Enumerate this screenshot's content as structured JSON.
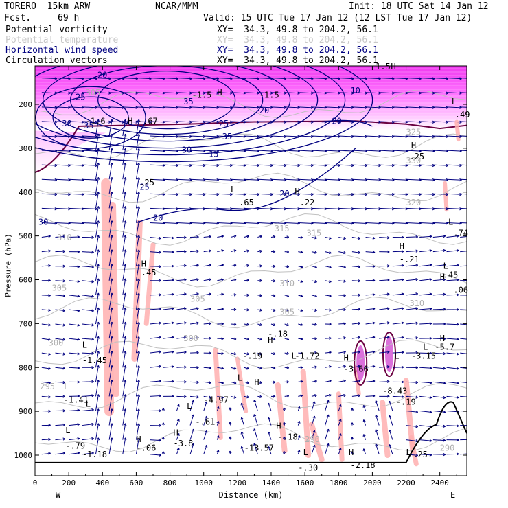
{
  "header": {
    "model": "TORERO  15km ARW",
    "org": "NCAR/MMM",
    "init": "Init: 18 UTC Sat 14 Jan 12",
    "fcst_label": "Fcst.",
    "fcst_value": "69 h",
    "valid": "Valid: 15 UTC Tue 17 Jan 12 (12 LST Tue 17 Jan 12)"
  },
  "fields": [
    {
      "name": "Potential vorticity",
      "xy": "XY=  34.3, 49.8 to 204.2, 56.1",
      "color": "#000000"
    },
    {
      "name": "Potential temperature",
      "xy": "XY=  34.3, 49.8 to 204.2, 56.1",
      "color": "#c8c8c8"
    },
    {
      "name": "Horizontal wind speed",
      "xy": "XY=  34.3, 49.8 to 204.2, 56.1",
      "color": "#000080"
    },
    {
      "name": "Circulation vectors",
      "xy": "XY=  34.3, 49.8 to 204.2, 56.1",
      "color": "#000000"
    }
  ],
  "chart_data": {
    "type": "cross-section",
    "xlabel": "Distance (km)",
    "ylabel": "Pressure (hPa)",
    "x_ticks": [
      0,
      200,
      400,
      600,
      800,
      1000,
      1200,
      1400,
      1600,
      1800,
      2000,
      2200,
      2400
    ],
    "y_ticks": [
      200,
      300,
      400,
      500,
      600,
      700,
      800,
      900,
      1000
    ],
    "xlim": [
      0,
      2560
    ],
    "ylim": [
      1040,
      120
    ],
    "x_end_labels": {
      "left": "W",
      "right": "E"
    },
    "colors": {
      "pv_high": "#ff00ff",
      "pv_band": "#ffb0b0",
      "theta": "#c0c0c0",
      "wind": "#000080",
      "vectors": "#000080",
      "terrain": "#000000"
    },
    "theta_labels": [
      {
        "text": "305",
        "x": 300,
        "p": 180
      },
      {
        "text": "310",
        "x": 130,
        "p": 510
      },
      {
        "text": "305",
        "x": 100,
        "p": 625
      },
      {
        "text": "300",
        "x": 80,
        "p": 750
      },
      {
        "text": "295",
        "x": 30,
        "p": 850
      },
      {
        "text": "320",
        "x": 2200,
        "p": 430
      },
      {
        "text": "315",
        "x": 1420,
        "p": 490
      },
      {
        "text": "315",
        "x": 1610,
        "p": 500
      },
      {
        "text": "310",
        "x": 1450,
        "p": 615
      },
      {
        "text": "305",
        "x": 1450,
        "p": 680
      },
      {
        "text": "310",
        "x": 2220,
        "p": 660
      },
      {
        "text": "300",
        "x": 880,
        "p": 740
      },
      {
        "text": "305",
        "x": 920,
        "p": 650
      },
      {
        "text": "330",
        "x": 2200,
        "p": 335
      },
      {
        "text": "325",
        "x": 2200,
        "p": 270
      },
      {
        "text": "290",
        "x": 1600,
        "p": 970
      },
      {
        "text": "290",
        "x": 2400,
        "p": 990
      }
    ],
    "wind_labels": [
      {
        "text": "20",
        "x": 370,
        "p": 140
      },
      {
        "text": "25",
        "x": 240,
        "p": 190
      },
      {
        "text": "30",
        "x": 160,
        "p": 250
      },
      {
        "text": "35",
        "x": 290,
        "p": 255
      },
      {
        "text": "35",
        "x": 880,
        "p": 200
      },
      {
        "text": "35",
        "x": 1110,
        "p": 280
      },
      {
        "text": "30",
        "x": 870,
        "p": 310
      },
      {
        "text": "25",
        "x": 1090,
        "p": 250
      },
      {
        "text": "20",
        "x": 1330,
        "p": 220
      },
      {
        "text": "20",
        "x": 1760,
        "p": 245
      },
      {
        "text": "15",
        "x": 1030,
        "p": 320
      },
      {
        "text": "10",
        "x": 1870,
        "p": 175
      },
      {
        "text": "20",
        "x": 700,
        "p": 465
      },
      {
        "text": "25",
        "x": 620,
        "p": 395
      },
      {
        "text": "20",
        "x": 1450,
        "p": 410
      },
      {
        "text": "30",
        "x": 20,
        "p": 475
      }
    ],
    "extrema": [
      {
        "text": "H",
        "x": 550,
        "p": 245
      },
      {
        "text": "H",
        "x": 1080,
        "p": 180
      },
      {
        "text": "H",
        "x": 2110,
        "p": 120
      },
      {
        "text": "H",
        "x": 1540,
        "p": 405
      },
      {
        "text": "H",
        "x": 2160,
        "p": 530
      },
      {
        "text": "H",
        "x": 630,
        "p": 570
      },
      {
        "text": "H",
        "x": 1380,
        "p": 745
      },
      {
        "text": "H",
        "x": 1830,
        "p": 785
      },
      {
        "text": "H",
        "x": 1300,
        "p": 840
      },
      {
        "text": "H",
        "x": 2230,
        "p": 300
      },
      {
        "text": "H",
        "x": 2400,
        "p": 740
      },
      {
        "text": "H",
        "x": 2400,
        "p": 600
      },
      {
        "text": "H",
        "x": 820,
        "p": 955
      },
      {
        "text": "H",
        "x": 600,
        "p": 970
      },
      {
        "text": "H",
        "x": 1430,
        "p": 940
      },
      {
        "text": "H",
        "x": 1860,
        "p": 1000
      },
      {
        "text": "L",
        "x": 1160,
        "p": 400
      },
      {
        "text": "L",
        "x": 300,
        "p": 890
      },
      {
        "text": "L",
        "x": 900,
        "p": 895
      },
      {
        "text": "L",
        "x": 1200,
        "p": 830
      },
      {
        "text": "L",
        "x": 1520,
        "p": 780
      },
      {
        "text": "L",
        "x": 2130,
        "p": 780
      },
      {
        "text": "L",
        "x": 2200,
        "p": 1000
      },
      {
        "text": "L",
        "x": 1590,
        "p": 1000
      },
      {
        "text": "L",
        "x": 180,
        "p": 950
      },
      {
        "text": "L",
        "x": 170,
        "p": 850
      },
      {
        "text": "L",
        "x": 2420,
        "p": 575
      },
      {
        "text": "L",
        "x": 2450,
        "p": 475
      },
      {
        "text": "L",
        "x": 2470,
        "p": 200
      },
      {
        "text": "L",
        "x": 2300,
        "p": 760
      },
      {
        "text": "L",
        "x": 280,
        "p": 755
      }
    ],
    "values": [
      {
        "text": "-1.6",
        "x": 300,
        "p": 245
      },
      {
        "text": "-.67",
        "x": 610,
        "p": 245
      },
      {
        "text": "-.65",
        "x": 1180,
        "p": 430
      },
      {
        "text": "-.22",
        "x": 1540,
        "p": 430
      },
      {
        "text": "-.21",
        "x": 2160,
        "p": 560
      },
      {
        "text": ".45",
        "x": 630,
        "p": 590
      },
      {
        "text": ".45",
        "x": 2420,
        "p": 595
      },
      {
        "text": ".06",
        "x": 2480,
        "p": 630
      },
      {
        "text": ".74",
        "x": 2480,
        "p": 500
      },
      {
        "text": ".25",
        "x": 2220,
        "p": 325
      },
      {
        "text": ".25",
        "x": 620,
        "p": 385
      },
      {
        "text": "-.19",
        "x": 1230,
        "p": 780
      },
      {
        "text": "-1.72",
        "x": 1540,
        "p": 780
      },
      {
        "text": "-3.66",
        "x": 1830,
        "p": 810
      },
      {
        "text": "-8.43",
        "x": 2060,
        "p": 860
      },
      {
        "text": "-3.15",
        "x": 2230,
        "p": 780
      },
      {
        "text": "-5.7",
        "x": 2370,
        "p": 760
      },
      {
        "text": "-1.45",
        "x": 280,
        "p": 790
      },
      {
        "text": "-1.41",
        "x": 170,
        "p": 880
      },
      {
        "text": "-4.97",
        "x": 1000,
        "p": 880
      },
      {
        "text": "-.61",
        "x": 950,
        "p": 930
      },
      {
        "text": "-3.8",
        "x": 820,
        "p": 980
      },
      {
        "text": "-.06",
        "x": 600,
        "p": 990
      },
      {
        "text": "-13.57",
        "x": 1240,
        "p": 990
      },
      {
        "text": "-.18",
        "x": 1440,
        "p": 965
      },
      {
        "text": "-.79",
        "x": 180,
        "p": 985
      },
      {
        "text": "-1.18",
        "x": 280,
        "p": 1005
      },
      {
        "text": "-.30",
        "x": 1560,
        "p": 1035
      },
      {
        "text": "-2.18",
        "x": 1870,
        "p": 1030
      },
      {
        "text": "-.25",
        "x": 2210,
        "p": 1005
      },
      {
        "text": "-.19",
        "x": 2140,
        "p": 885
      },
      {
        "text": "-.18",
        "x": 1380,
        "p": 730
      },
      {
        "text": "-1.5",
        "x": 930,
        "p": 185
      },
      {
        "text": "-1.5",
        "x": 1330,
        "p": 185
      },
      {
        "text": ".49",
        "x": 2490,
        "p": 230
      },
      {
        "text": "-1.5",
        "x": 1990,
        "p": 120
      }
    ]
  }
}
